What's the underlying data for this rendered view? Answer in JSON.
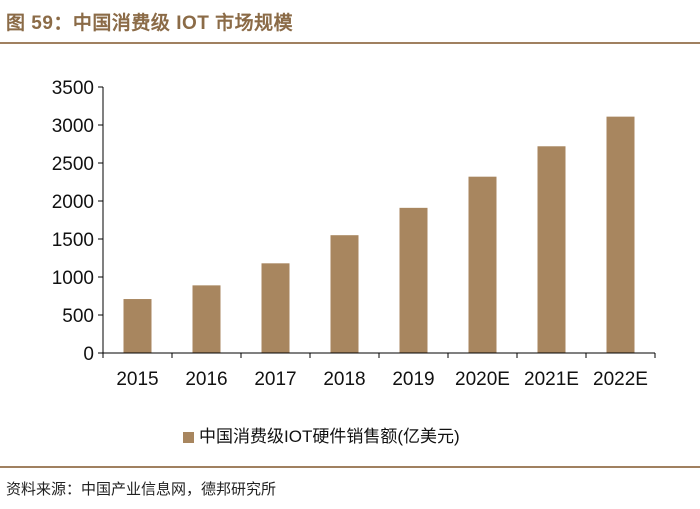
{
  "header": {
    "title": "图 59：中国消费级 IOT 市场规模"
  },
  "footer": {
    "source": "资料来源：中国产业信息网，德邦研究所"
  },
  "colors": {
    "bar": "#a8865f",
    "accent": "#8b6b47",
    "rule": "#a08060"
  },
  "chart_data": {
    "type": "bar",
    "title": "",
    "xlabel": "",
    "ylabel": "",
    "categories": [
      "2015",
      "2016",
      "2017",
      "2018",
      "2019",
      "2020E",
      "2021E",
      "2022E"
    ],
    "series": [
      {
        "name": "中国消费级IOT硬件销售额(亿美元)",
        "values": [
          710,
          890,
          1180,
          1550,
          1910,
          2320,
          2720,
          3110
        ]
      }
    ],
    "ylim": [
      0,
      3500
    ],
    "yticks": [
      0,
      500,
      1000,
      1500,
      2000,
      2500,
      3000,
      3500
    ],
    "grid": false,
    "legend_position": "bottom-center"
  }
}
